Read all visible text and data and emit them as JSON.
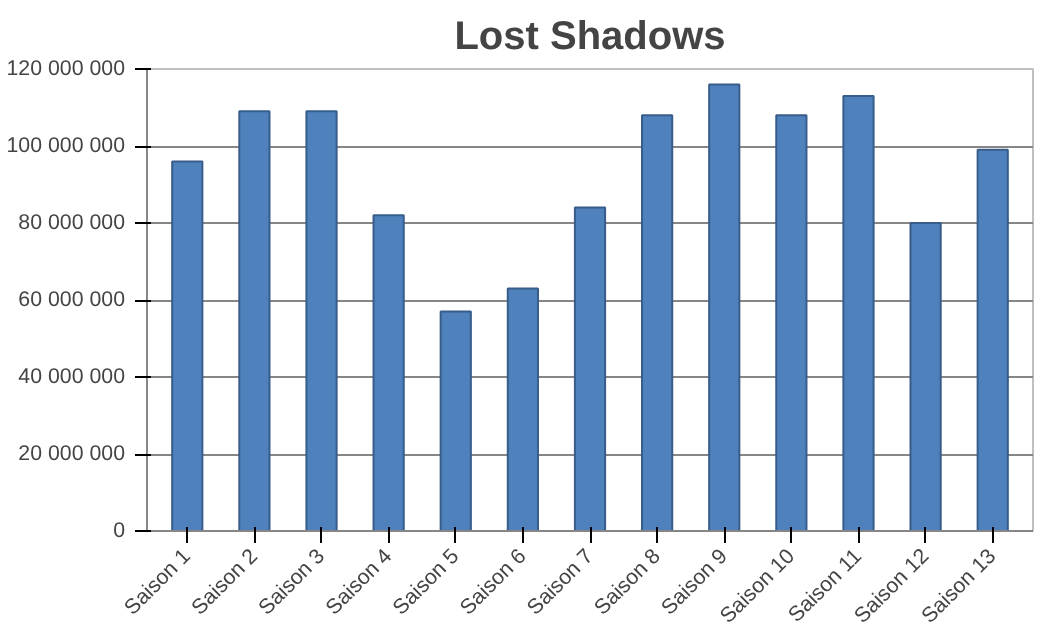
{
  "chart_data": {
    "type": "bar",
    "title": "Lost Shadows",
    "categories": [
      "Saison 1",
      "Saison 2",
      "Saison 3",
      "Saison 4",
      "Saison 5",
      "Saison 6",
      "Saison 7",
      "Saison 8",
      "Saison 9",
      "Saison 10",
      "Saison 11",
      "Saison 12",
      "Saison 13"
    ],
    "values": [
      96000000,
      109000000,
      109000000,
      82000000,
      57000000,
      63000000,
      84000000,
      108000000,
      116000000,
      108000000,
      113000000,
      80000000,
      99000000
    ],
    "color": "#4f81bd",
    "ylim": [
      0,
      120000000
    ],
    "yticks": [
      0,
      {
        "value": 20000000,
        "label": "20 000 000"
      },
      {
        "value": 40000000,
        "label": "40 000 000"
      },
      {
        "value": 60000000,
        "label": "60 000 000"
      },
      {
        "value": 80000000,
        "label": "80 000 000"
      },
      {
        "value": 100000000,
        "label": "100 000 000"
      },
      {
        "value": 120000000,
        "label": "120 000 000"
      }
    ],
    "grid": "y"
  }
}
